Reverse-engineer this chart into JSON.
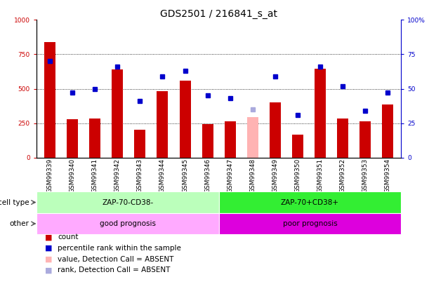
{
  "title": "GDS2501 / 216841_s_at",
  "samples": [
    "GSM99339",
    "GSM99340",
    "GSM99341",
    "GSM99342",
    "GSM99343",
    "GSM99344",
    "GSM99345",
    "GSM99346",
    "GSM99347",
    "GSM99348",
    "GSM99349",
    "GSM99350",
    "GSM99351",
    "GSM99352",
    "GSM99353",
    "GSM99354"
  ],
  "bar_values": [
    840,
    280,
    285,
    640,
    200,
    480,
    560,
    245,
    265,
    295,
    400,
    165,
    645,
    285,
    265,
    385
  ],
  "bar_absent": [
    false,
    false,
    false,
    false,
    false,
    false,
    false,
    false,
    false,
    true,
    false,
    false,
    false,
    false,
    false,
    false
  ],
  "rank_values": [
    70,
    47,
    50,
    66,
    41,
    59,
    63,
    45,
    43,
    35,
    59,
    31,
    66,
    52,
    34,
    47
  ],
  "rank_absent": [
    false,
    false,
    false,
    false,
    false,
    false,
    false,
    false,
    false,
    true,
    false,
    false,
    false,
    false,
    false,
    false
  ],
  "bar_color_normal": "#cc0000",
  "bar_color_absent": "#ffb3b3",
  "rank_color_normal": "#0000cc",
  "rank_color_absent": "#aaaadd",
  "cell_type_groups": [
    {
      "label": "ZAP-70-CD38-",
      "start": 0,
      "end": 8,
      "color": "#bbffbb"
    },
    {
      "label": "ZAP-70+CD38+",
      "start": 8,
      "end": 16,
      "color": "#33ee33"
    }
  ],
  "other_groups": [
    {
      "label": "good prognosis",
      "start": 0,
      "end": 8,
      "color": "#ffaaff"
    },
    {
      "label": "poor prognosis",
      "start": 8,
      "end": 16,
      "color": "#dd00dd"
    }
  ],
  "cell_type_label": "cell type",
  "other_label": "other",
  "ylim_left": [
    0,
    1000
  ],
  "ylim_right": [
    0,
    100
  ],
  "yticks_left": [
    0,
    250,
    500,
    750,
    1000
  ],
  "yticks_right": [
    0,
    25,
    50,
    75,
    100
  ],
  "ytick_labels_right": [
    "0",
    "25",
    "50",
    "75",
    "100%"
  ],
  "legend_items": [
    {
      "label": "count",
      "color": "#cc0000"
    },
    {
      "label": "percentile rank within the sample",
      "color": "#0000cc"
    },
    {
      "label": "value, Detection Call = ABSENT",
      "color": "#ffb3b3"
    },
    {
      "label": "rank, Detection Call = ABSENT",
      "color": "#aaaadd"
    }
  ],
  "background_color": "#ffffff",
  "title_fontsize": 10,
  "tick_fontsize": 6.5,
  "label_fontsize": 8,
  "legend_fontsize": 7.5
}
